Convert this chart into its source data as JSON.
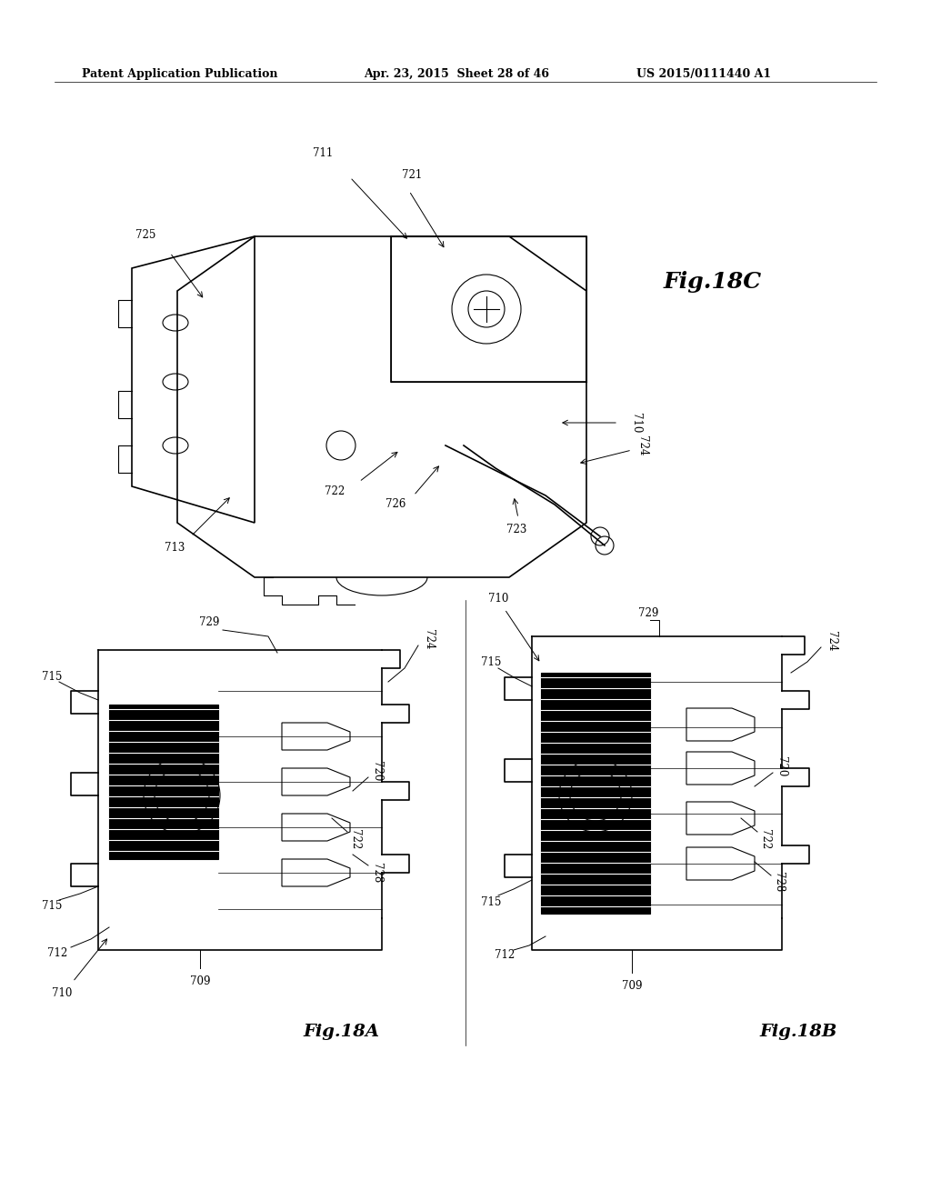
{
  "bg_color": "#ffffff",
  "header_left": "Patent Application Publication",
  "header_mid": "Apr. 23, 2015  Sheet 28 of 46",
  "header_right": "US 2015/0111440 A1",
  "fig_labels": {
    "fig18c": "Fig.18C",
    "fig18a": "Fig.18A",
    "fig18b": "Fig.18B"
  },
  "fig18c_labels": [
    "711",
    "721",
    "725",
    "710",
    "724",
    "722",
    "726",
    "723",
    "713"
  ],
  "fig18a_labels": [
    "729",
    "724",
    "715",
    "720",
    "722",
    "728",
    "712",
    "709",
    "710",
    "715"
  ],
  "fig18b_labels": [
    "710",
    "729",
    "724",
    "715",
    "720",
    "722",
    "728",
    "712",
    "709",
    "715"
  ]
}
